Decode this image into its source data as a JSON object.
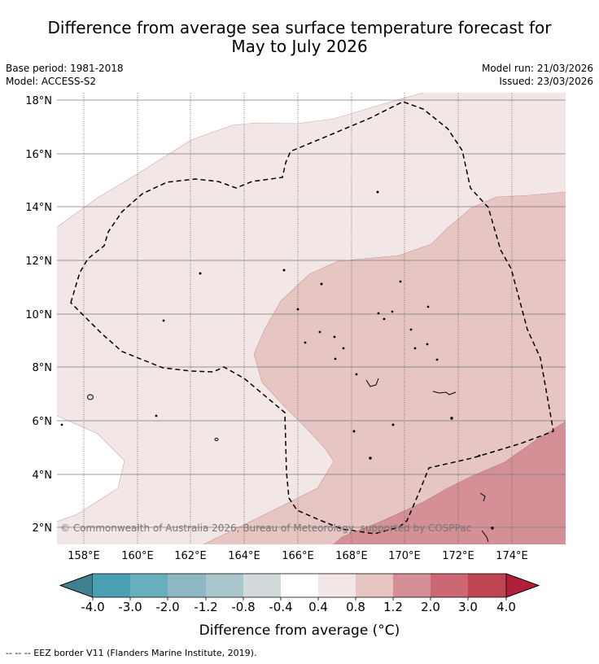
{
  "title": {
    "line1": "Difference from average sea surface temperature forecast for",
    "line2": "May to July 2026"
  },
  "meta": {
    "base_period": "Base period: 1981-2018",
    "model": "Model: ACCESS-S2",
    "model_run": "Model run: 21/03/2026",
    "issued": "Issued: 23/03/2026"
  },
  "map": {
    "lat_labels": [
      "18°N",
      "16°N",
      "14°N",
      "12°N",
      "10°N",
      "8°N",
      "6°N",
      "4°N",
      "2°N"
    ],
    "lon_labels": [
      "158°E",
      "160°E",
      "162°E",
      "164°E",
      "166°E",
      "168°E",
      "170°E",
      "172°E",
      "174°E"
    ],
    "credit": "© Commonwealth of Australia 2026, Bureau of Meteorology, supported by COSPPac"
  },
  "colorbar": {
    "labels": [
      "-4.0",
      "-3.0",
      "-2.0",
      "-1.2",
      "-0.8",
      "-0.4",
      "0.4",
      "0.8",
      "1.2",
      "2.0",
      "3.0",
      "4.0"
    ],
    "colors": [
      "#3e808d",
      "#48a0b2",
      "#69aebd",
      "#8cb7c3",
      "#a8c6cb",
      "#d3dadc",
      "#ffffff",
      "#f3e6e6",
      "#e6c5c2",
      "#d58f97",
      "#cd6773",
      "#c04552",
      "#b21f3a"
    ],
    "title": "Difference from average (°C)"
  },
  "footer": "--  --  -- EEZ border V11 (Flanders Marine Institute, 2019)."
}
